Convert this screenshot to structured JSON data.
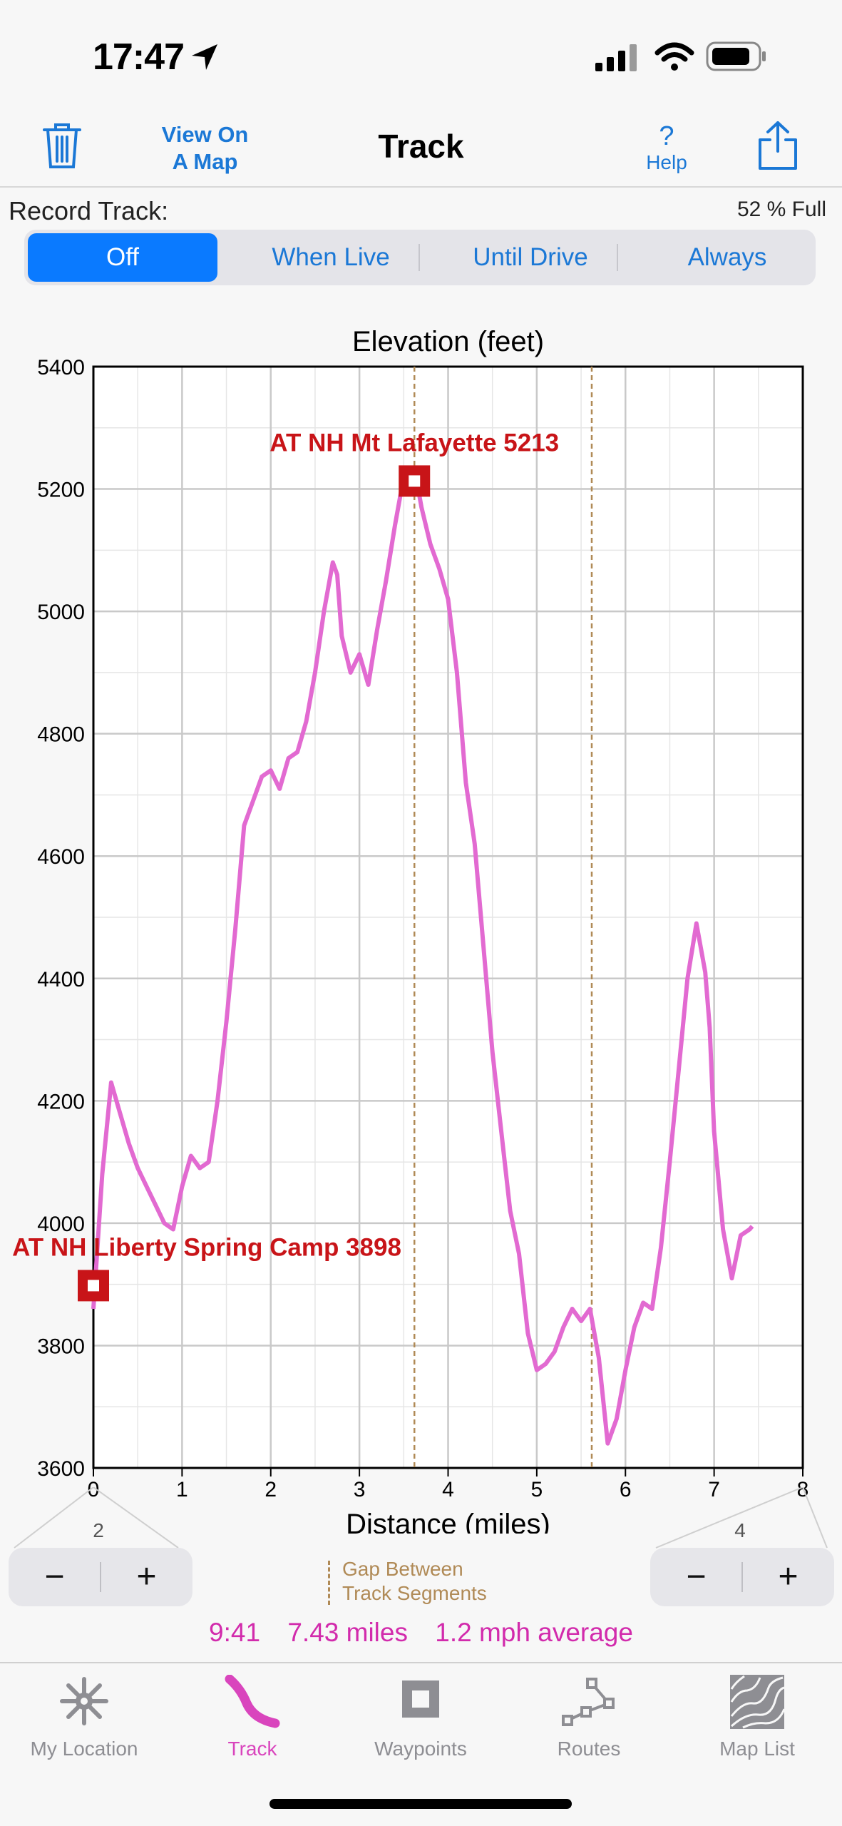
{
  "status_bar": {
    "time": "17:47"
  },
  "nav": {
    "view_map_line1": "View On",
    "view_map_line2": "A Map",
    "title": "Track",
    "help_symbol": "?",
    "help_label": "Help"
  },
  "record": {
    "label": "Record Track:",
    "full": "52 % Full",
    "options": [
      "Off",
      "When Live",
      "Until Drive",
      "Always"
    ],
    "selected": "Off"
  },
  "chart_data": {
    "type": "line",
    "title": "Elevation (feet)",
    "xlabel": "Distance (miles)",
    "ylabel": "",
    "xlim": [
      0,
      8
    ],
    "ylim": [
      3600,
      5400
    ],
    "x_ticks": [
      "0",
      "1",
      "2",
      "3",
      "4",
      "5",
      "6",
      "7",
      "8"
    ],
    "y_ticks": [
      "3600",
      "3800",
      "4000",
      "4200",
      "4400",
      "4600",
      "4800",
      "5000",
      "5200",
      "5400"
    ],
    "grid": true,
    "series": [
      {
        "color": "#e26ad1",
        "x": [
          0.0,
          0.1,
          0.2,
          0.3,
          0.4,
          0.5,
          0.6,
          0.7,
          0.8,
          0.9,
          1.0,
          1.1,
          1.2,
          1.3,
          1.4,
          1.5,
          1.6,
          1.7,
          1.8,
          1.9,
          2.0,
          2.1,
          2.2,
          2.3,
          2.4,
          2.5,
          2.6,
          2.7,
          2.75,
          2.8,
          2.9,
          3.0,
          3.1,
          3.2,
          3.3,
          3.4,
          3.5,
          3.6,
          3.65,
          3.7,
          3.8,
          3.9,
          4.0,
          4.1,
          4.2,
          4.3,
          4.4,
          4.5,
          4.6,
          4.7,
          4.8,
          4.9,
          5.0,
          5.1,
          5.2,
          5.3,
          5.4,
          5.5,
          5.6,
          5.7,
          5.8,
          5.9,
          6.0,
          6.1,
          6.2,
          6.3,
          6.4,
          6.5,
          6.6,
          6.7,
          6.8,
          6.9,
          6.95,
          7.0,
          7.1,
          7.2,
          7.3,
          7.4,
          7.43
        ],
        "y": [
          3860,
          4080,
          4230,
          4180,
          4130,
          4090,
          4060,
          4030,
          4000,
          3990,
          4060,
          4110,
          4090,
          4100,
          4200,
          4330,
          4480,
          4650,
          4690,
          4730,
          4740,
          4710,
          4760,
          4770,
          4820,
          4900,
          5000,
          5080,
          5060,
          4960,
          4900,
          4930,
          4880,
          4970,
          5050,
          5140,
          5220,
          5220,
          5210,
          5170,
          5110,
          5070,
          5020,
          4900,
          4720,
          4620,
          4450,
          4280,
          4150,
          4020,
          3950,
          3820,
          3760,
          3770,
          3790,
          3830,
          3860,
          3840,
          3860,
          3780,
          3640,
          3680,
          3760,
          3830,
          3870,
          3860,
          3960,
          4100,
          4250,
          4400,
          4490,
          4410,
          4320,
          4150,
          3990,
          3910,
          3980,
          3990,
          3995
        ]
      }
    ],
    "annotations": [
      {
        "label": "AT NH Mt Lafayette 5213",
        "x": 3.62,
        "y": 5213
      },
      {
        "label": "AT NH Liberty Spring Camp 3898",
        "x": 0.0,
        "y": 3898
      }
    ],
    "gap_markers_x": [
      3.62,
      5.62
    ],
    "gap_color": "#b08a56",
    "marker_color": "#c81418"
  },
  "zoom": {
    "left_value": "2",
    "right_value": "4",
    "minus": "−",
    "plus": "+"
  },
  "gap_legend": {
    "line1": "Gap Between",
    "line2": "Track Segments"
  },
  "summary": {
    "duration": "9:41",
    "distance": "7.43 miles",
    "speed": "1.2 mph average"
  },
  "tabs": [
    {
      "label": "My Location",
      "icon": "asterisk-icon"
    },
    {
      "label": "Track",
      "icon": "track-icon",
      "active": true
    },
    {
      "label": "Waypoints",
      "icon": "waypoint-square-icon"
    },
    {
      "label": "Routes",
      "icon": "routes-icon"
    },
    {
      "label": "Map List",
      "icon": "map-list-icon"
    }
  ],
  "colors": {
    "accent": "#1b78d6",
    "selected_segment": "#0a7aff",
    "track": "#e26ad1",
    "active_tab": "#d945bd"
  }
}
